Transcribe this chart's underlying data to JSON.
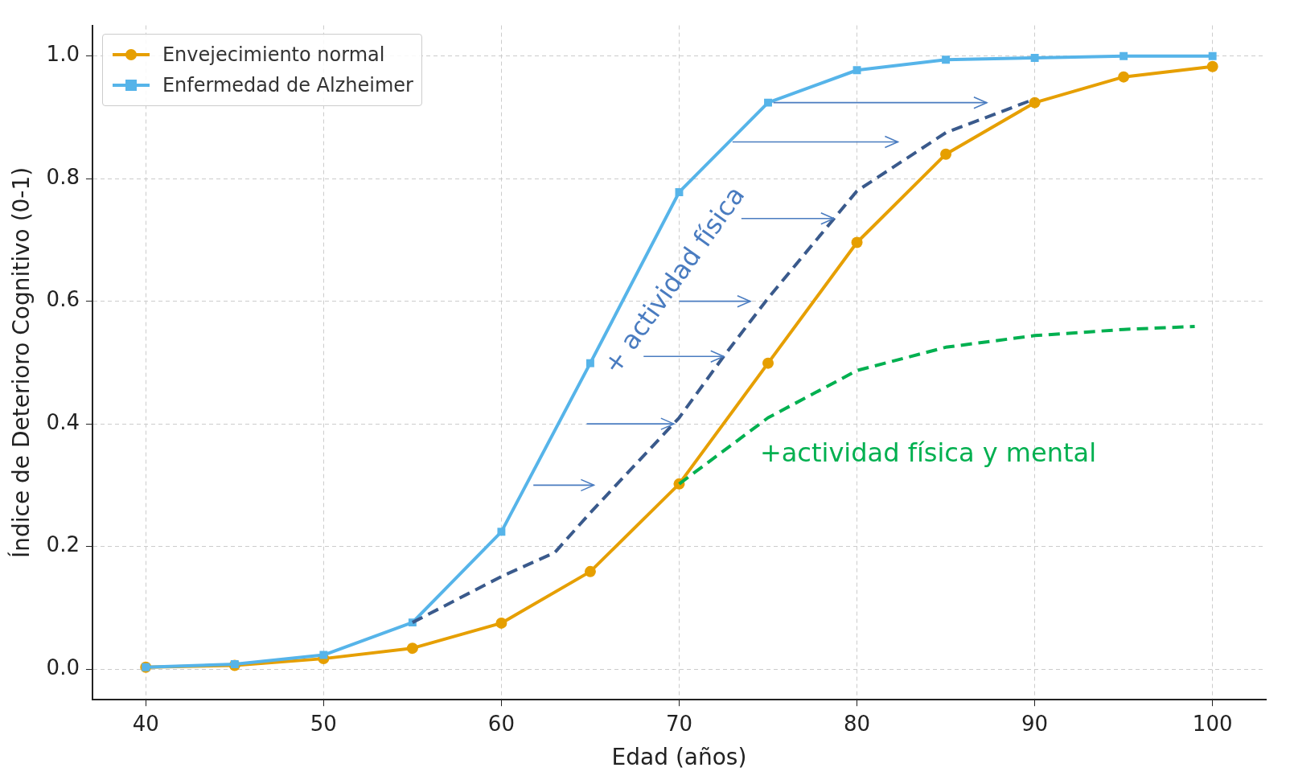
{
  "chart_data": {
    "type": "line",
    "xlabel": "Edad (años)",
    "ylabel": "Índice de Deterioro Cognitivo (0-1)",
    "xlim": [
      37,
      103
    ],
    "ylim": [
      -0.05,
      1.05
    ],
    "xticks": [
      40,
      50,
      60,
      70,
      80,
      90,
      100
    ],
    "yticks": [
      {
        "value": 0,
        "label": "0.0"
      },
      {
        "value": 0.2,
        "label": "0.2"
      },
      {
        "value": 0.4,
        "label": "0.4"
      },
      {
        "value": 0.6,
        "label": "0.6"
      },
      {
        "value": 0.8,
        "label": "0.8"
      },
      {
        "value": 1,
        "label": "1.0"
      }
    ],
    "grid": true,
    "legend": "top left",
    "series": [
      {
        "name": "Envejecimiento normal",
        "color": "#e69f00",
        "marker": "circle",
        "line_style": "solid",
        "x": [
          40,
          45,
          50,
          55,
          60,
          65,
          70,
          75,
          80,
          85,
          90,
          95,
          100
        ],
        "values": [
          0.003,
          0.006,
          0.017,
          0.034,
          0.075,
          0.159,
          0.302,
          0.499,
          0.696,
          0.84,
          0.924,
          0.966,
          0.983
        ]
      },
      {
        "name": "Enfermedad de Alzheimer",
        "color": "#56b4e9",
        "marker": "square",
        "line_style": "solid",
        "x": [
          40,
          45,
          50,
          55,
          60,
          65,
          70,
          75,
          80,
          85,
          90,
          95,
          100
        ],
        "values": [
          0.003,
          0.008,
          0.023,
          0.076,
          0.224,
          0.499,
          0.778,
          0.924,
          0.977,
          0.994,
          0.997,
          1.0,
          1.0
        ]
      },
      {
        "color": "#3a5a8c",
        "marker": "none",
        "line_style": "dashed",
        "x": [
          55,
          60,
          63,
          65,
          70,
          72.5,
          75,
          80,
          85,
          90
        ],
        "values": [
          0.076,
          0.151,
          0.19,
          0.255,
          0.41,
          0.51,
          0.605,
          0.78,
          0.875,
          0.93
        ]
      },
      {
        "color": "#00b050",
        "marker": "none",
        "line_style": "dashed",
        "x": [
          70,
          75,
          80,
          85,
          90,
          95,
          99
        ],
        "values": [
          0.302,
          0.41,
          0.487,
          0.525,
          0.544,
          0.554,
          0.559
        ]
      }
    ],
    "annotations": [
      {
        "text": "+ actividad física",
        "x": 78.7,
        "y": 0.735
      },
      "+actividad física y mental"
    ]
  }
}
